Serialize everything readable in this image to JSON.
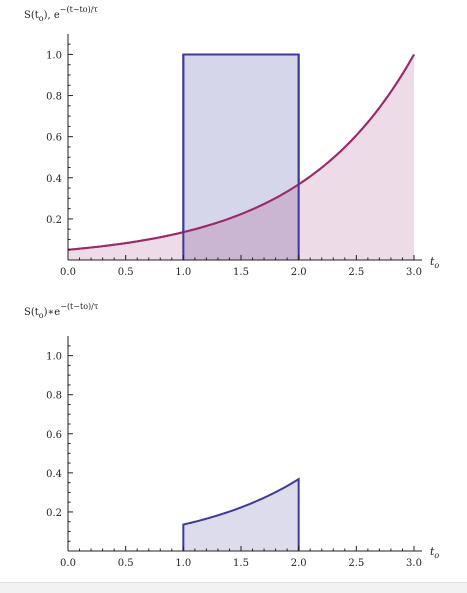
{
  "chart_data": [
    {
      "type": "area",
      "ylabel_parts": [
        "S(t",
        "o",
        "), e",
        "−(t−to)/τ"
      ],
      "xlabel_parts": [
        "t",
        "o"
      ],
      "xlim": [
        0,
        3
      ],
      "ylim": [
        0,
        1.08
      ],
      "xticks": [
        "0.0",
        "0.5",
        "1.0",
        "1.5",
        "2.0",
        "2.5",
        "3.0"
      ],
      "xtick_values": [
        0,
        0.5,
        1,
        1.5,
        2,
        2.5,
        3
      ],
      "yticks": [
        "0.2",
        "0.4",
        "0.6",
        "0.8",
        "1.0"
      ],
      "ytick_values": [
        0.2,
        0.4,
        0.6,
        0.8,
        1.0
      ],
      "grid": false,
      "series": [
        {
          "kind": "rect",
          "x": [
            1,
            2
          ],
          "y": 1.0,
          "color": "#3f3a9a",
          "fill": "#d6d6ea"
        },
        {
          "kind": "exp",
          "x_range": [
            0,
            3
          ],
          "end_value": 1.0,
          "tau": 1,
          "color": "#9c2a6a",
          "fill": "#ead6e4"
        }
      ]
    },
    {
      "type": "area",
      "ylabel_parts": [
        "S(t",
        "o",
        ")∗e",
        "−(t−to)/τ"
      ],
      "xlabel_parts": [
        "t",
        "o"
      ],
      "xlim": [
        0,
        3
      ],
      "ylim": [
        0,
        1.08
      ],
      "xticks": [
        "0.0",
        "0.5",
        "1.0",
        "1.5",
        "2.0",
        "2.5",
        "3.0"
      ],
      "xtick_values": [
        0,
        0.5,
        1,
        1.5,
        2,
        2.5,
        3
      ],
      "yticks": [
        "0.2",
        "0.4",
        "0.6",
        "0.8",
        "1.0"
      ],
      "ytick_values": [
        0.2,
        0.4,
        0.6,
        0.8,
        1.0
      ],
      "grid": false,
      "series": [
        {
          "kind": "exp-window",
          "x_range": [
            1,
            2
          ],
          "end_value": 1.0,
          "end_x": 3,
          "tau": 1,
          "color": "#3f3a9a",
          "fill": "#d6d6ea"
        }
      ]
    }
  ]
}
